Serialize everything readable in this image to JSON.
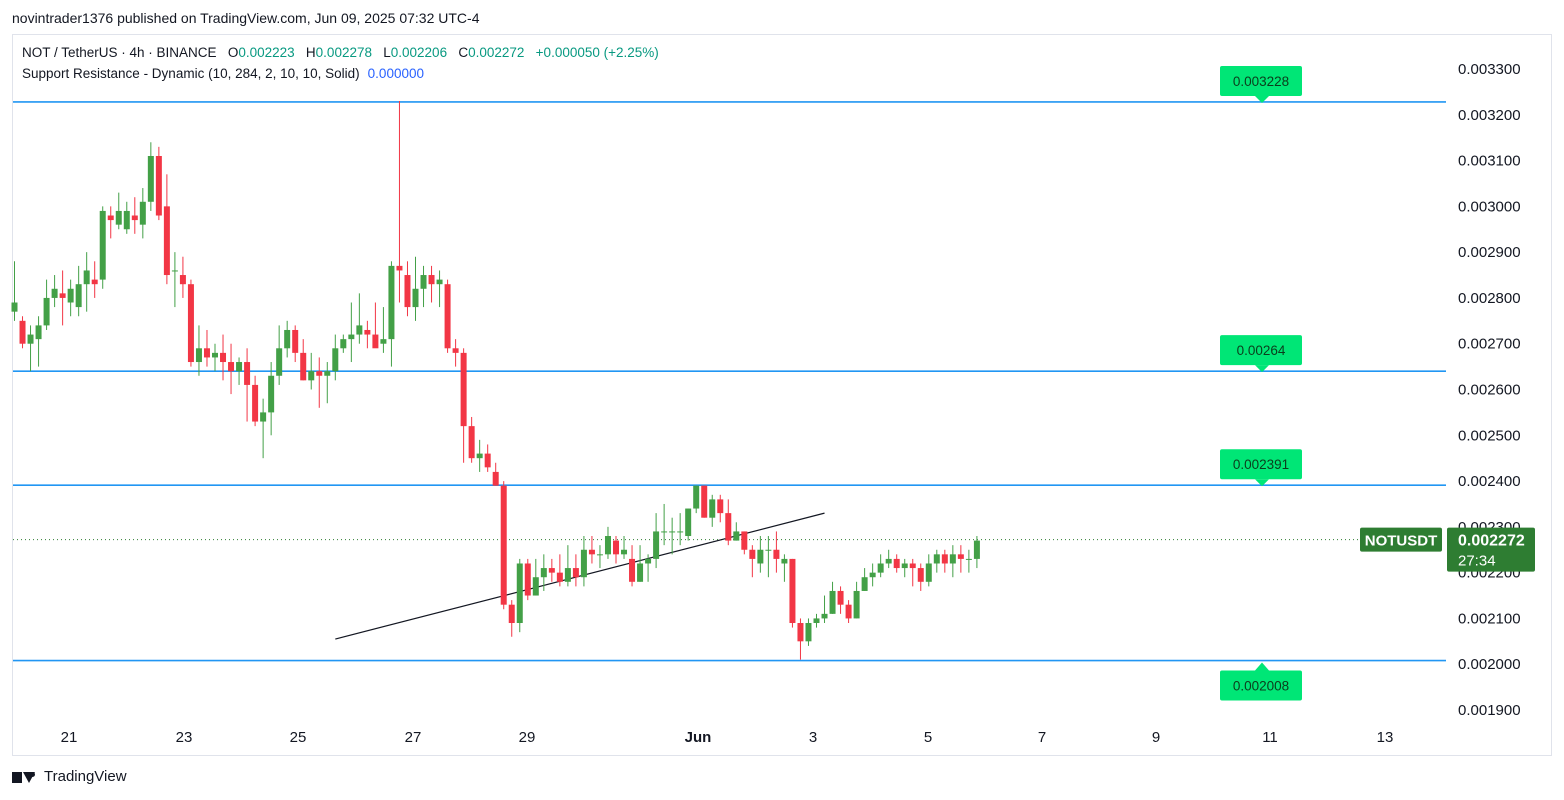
{
  "header": {
    "publisher_line": "novintrader1376 published on TradingView.com, Jun 09, 2025 07:32 UTC-4"
  },
  "legend": {
    "symbol_line": "NOT / TetherUS · 4h · BINANCE",
    "o_label": "O",
    "o_value": "0.002223",
    "h_label": "H",
    "h_value": "0.002278",
    "l_label": "L",
    "l_value": "0.002206",
    "c_label": "C",
    "c_value": "0.002272",
    "change": "+0.000050 (+2.25%)",
    "indicator": "Support Resistance - Dynamic (10, 284, 2, 10, 10, Solid)",
    "indicator_value": "0.000000"
  },
  "price_tag": {
    "symbol": "NOTUSDT",
    "price": "0.002272",
    "countdown": "27:34",
    "color": "#2e7d32"
  },
  "footer": {
    "brand": "TradingView"
  },
  "colors": {
    "up": "#43a047",
    "down": "#f23645",
    "level_line": "#2196f3",
    "level_label": "#00e676"
  },
  "chart_data": {
    "type": "candlestick",
    "interval": "4h",
    "ylim": [
      0.00185,
      0.00335
    ],
    "y_ticks": [
      "0.003300",
      "0.003200",
      "0.003100",
      "0.003000",
      "0.002900",
      "0.002800",
      "0.002700",
      "0.002600",
      "0.002500",
      "0.002400",
      "0.002300",
      "0.002200",
      "0.002100",
      "0.002000",
      "0.001900"
    ],
    "x_ticks": [
      "21",
      "23",
      "25",
      "27",
      "29",
      "Jun",
      "3",
      "5",
      "7",
      "9",
      "11",
      "13"
    ],
    "levels": [
      {
        "label": "0.003228",
        "value": 0.003228,
        "label_side": "above"
      },
      {
        "label": "0.00264",
        "value": 0.00264,
        "label_side": "above"
      },
      {
        "label": "0.002391",
        "value": 0.002391,
        "label_side": "above"
      },
      {
        "label": "0.002008",
        "value": 0.002008,
        "label_side": "below"
      }
    ],
    "last_price": 0.002272,
    "trendline": [
      {
        "bar": 40,
        "price": 0.002055
      },
      {
        "bar": 101,
        "price": 0.00233
      }
    ],
    "candles": [
      [
        0.00277,
        0.00279,
        0.00275,
        0.00288
      ],
      [
        0.00275,
        0.0027,
        0.00269,
        0.00276
      ],
      [
        0.0027,
        0.00272,
        0.00264,
        0.00274
      ],
      [
        0.00271,
        0.00274,
        0.00265,
        0.00276
      ],
      [
        0.00274,
        0.0028,
        0.00273,
        0.00284
      ],
      [
        0.0028,
        0.00282,
        0.00278,
        0.00285
      ],
      [
        0.00281,
        0.0028,
        0.00274,
        0.00286
      ],
      [
        0.00279,
        0.00282,
        0.00276,
        0.00284
      ],
      [
        0.00278,
        0.00283,
        0.00276,
        0.00287
      ],
      [
        0.00283,
        0.00286,
        0.00277,
        0.0029
      ],
      [
        0.00284,
        0.00283,
        0.0028,
        0.00288
      ],
      [
        0.00284,
        0.00299,
        0.00282,
        0.003
      ],
      [
        0.00298,
        0.00297,
        0.00293,
        0.003
      ],
      [
        0.00296,
        0.00299,
        0.00295,
        0.00303
      ],
      [
        0.00295,
        0.00299,
        0.00294,
        0.00301
      ],
      [
        0.00298,
        0.00297,
        0.00294,
        0.00302
      ],
      [
        0.00296,
        0.00301,
        0.00293,
        0.00304
      ],
      [
        0.00301,
        0.00311,
        0.00299,
        0.00314
      ],
      [
        0.00311,
        0.00298,
        0.00297,
        0.00313
      ],
      [
        0.003,
        0.00285,
        0.00283,
        0.00307
      ],
      [
        0.00286,
        0.00286,
        0.00278,
        0.0029
      ],
      [
        0.00285,
        0.00283,
        0.0028,
        0.00289
      ],
      [
        0.00283,
        0.00266,
        0.00265,
        0.00284
      ],
      [
        0.00266,
        0.00269,
        0.00263,
        0.00274
      ],
      [
        0.00269,
        0.00267,
        0.00265,
        0.00273
      ],
      [
        0.00267,
        0.00268,
        0.00264,
        0.0027
      ],
      [
        0.00268,
        0.00266,
        0.00262,
        0.00272
      ],
      [
        0.00266,
        0.00264,
        0.00259,
        0.0027
      ],
      [
        0.00264,
        0.00266,
        0.00261,
        0.00267
      ],
      [
        0.00266,
        0.00261,
        0.00253,
        0.00269
      ],
      [
        0.00261,
        0.00253,
        0.00252,
        0.00263
      ],
      [
        0.00253,
        0.00255,
        0.00245,
        0.00258
      ],
      [
        0.00255,
        0.00263,
        0.0025,
        0.00266
      ],
      [
        0.00263,
        0.00269,
        0.00261,
        0.00274
      ],
      [
        0.00269,
        0.00273,
        0.00267,
        0.00275
      ],
      [
        0.00273,
        0.00268,
        0.00266,
        0.00274
      ],
      [
        0.00268,
        0.00262,
        0.00262,
        0.00271
      ],
      [
        0.00262,
        0.00264,
        0.0026,
        0.00268
      ],
      [
        0.00264,
        0.00263,
        0.00256,
        0.00267
      ],
      [
        0.00263,
        0.00264,
        0.00257,
        0.00266
      ],
      [
        0.00264,
        0.00269,
        0.00262,
        0.00272
      ],
      [
        0.00269,
        0.00271,
        0.00268,
        0.00272
      ],
      [
        0.00271,
        0.00272,
        0.00266,
        0.00279
      ],
      [
        0.00272,
        0.00274,
        0.0027,
        0.00281
      ],
      [
        0.00273,
        0.00272,
        0.00269,
        0.00275
      ],
      [
        0.00272,
        0.00269,
        0.0027,
        0.00279
      ],
      [
        0.0027,
        0.00271,
        0.00268,
        0.00278
      ],
      [
        0.00271,
        0.00287,
        0.00265,
        0.00288
      ],
      [
        0.00287,
        0.00286,
        0.00279,
        0.00323
      ],
      [
        0.00285,
        0.00278,
        0.00276,
        0.00288
      ],
      [
        0.00278,
        0.00282,
        0.00275,
        0.00289
      ],
      [
        0.00282,
        0.00285,
        0.00278,
        0.00287
      ],
      [
        0.00285,
        0.00283,
        0.00279,
        0.00287
      ],
      [
        0.00283,
        0.00284,
        0.00278,
        0.00286
      ],
      [
        0.00283,
        0.00269,
        0.00268,
        0.00284
      ],
      [
        0.00269,
        0.00268,
        0.00265,
        0.00271
      ],
      [
        0.00268,
        0.00252,
        0.00244,
        0.00269
      ],
      [
        0.00252,
        0.00245,
        0.00244,
        0.00254
      ],
      [
        0.00245,
        0.00246,
        0.00242,
        0.00249
      ],
      [
        0.00246,
        0.00243,
        0.00242,
        0.00248
      ],
      [
        0.00242,
        0.00239,
        0.00239,
        0.00244
      ],
      [
        0.00239,
        0.00213,
        0.00212,
        0.0024
      ],
      [
        0.00213,
        0.00209,
        0.00206,
        0.00214
      ],
      [
        0.00209,
        0.00222,
        0.00207,
        0.00223
      ],
      [
        0.00222,
        0.00215,
        0.00214,
        0.00223
      ],
      [
        0.00215,
        0.00219,
        0.00215,
        0.00223
      ],
      [
        0.00219,
        0.00221,
        0.00216,
        0.00224
      ],
      [
        0.00221,
        0.0022,
        0.00218,
        0.00223
      ],
      [
        0.0022,
        0.00218,
        0.00217,
        0.00224
      ],
      [
        0.00218,
        0.00221,
        0.00217,
        0.00226
      ],
      [
        0.00221,
        0.00219,
        0.00217,
        0.00224
      ],
      [
        0.00219,
        0.00225,
        0.00217,
        0.00228
      ],
      [
        0.00225,
        0.00224,
        0.00222,
        0.00228
      ],
      [
        0.00224,
        0.00224,
        0.00221,
        0.00226
      ],
      [
        0.00224,
        0.00228,
        0.00223,
        0.0023
      ],
      [
        0.00227,
        0.00224,
        0.00222,
        0.00228
      ],
      [
        0.00224,
        0.00225,
        0.00223,
        0.00228
      ],
      [
        0.00223,
        0.00218,
        0.00217,
        0.00226
      ],
      [
        0.00218,
        0.00222,
        0.00218,
        0.00226
      ],
      [
        0.00222,
        0.00223,
        0.00218,
        0.00224
      ],
      [
        0.00223,
        0.00229,
        0.00221,
        0.00233
      ],
      [
        0.00229,
        0.00229,
        0.00226,
        0.00235
      ],
      [
        0.00229,
        0.00229,
        0.00224,
        0.00232
      ],
      [
        0.00229,
        0.00229,
        0.00226,
        0.00233
      ],
      [
        0.00228,
        0.00234,
        0.00227,
        0.00234
      ],
      [
        0.00234,
        0.00239,
        0.00233,
        0.00239
      ],
      [
        0.00239,
        0.00232,
        0.00232,
        0.00239
      ],
      [
        0.00232,
        0.00236,
        0.0023,
        0.00237
      ],
      [
        0.00236,
        0.00233,
        0.00231,
        0.00237
      ],
      [
        0.00233,
        0.00227,
        0.00226,
        0.00236
      ],
      [
        0.00227,
        0.00229,
        0.00227,
        0.00231
      ],
      [
        0.00229,
        0.00225,
        0.00224,
        0.00229
      ],
      [
        0.00225,
        0.00223,
        0.00219,
        0.00226
      ],
      [
        0.00222,
        0.00225,
        0.0022,
        0.00228
      ],
      [
        0.00225,
        0.00225,
        0.00219,
        0.00228
      ],
      [
        0.00225,
        0.00223,
        0.0022,
        0.00229
      ],
      [
        0.00222,
        0.00223,
        0.00218,
        0.00224
      ],
      [
        0.00223,
        0.00209,
        0.00208,
        0.00223
      ],
      [
        0.00209,
        0.00205,
        0.00201,
        0.0021
      ],
      [
        0.00205,
        0.00209,
        0.00204,
        0.0021
      ],
      [
        0.00209,
        0.0021,
        0.00208,
        0.00211
      ],
      [
        0.0021,
        0.00211,
        0.00209,
        0.00215
      ],
      [
        0.00211,
        0.00216,
        0.00211,
        0.00218
      ],
      [
        0.00216,
        0.00213,
        0.00211,
        0.00217
      ],
      [
        0.00213,
        0.0021,
        0.00209,
        0.00214
      ],
      [
        0.0021,
        0.00216,
        0.0021,
        0.00218
      ],
      [
        0.00216,
        0.00219,
        0.00216,
        0.00221
      ],
      [
        0.00219,
        0.0022,
        0.00217,
        0.00222
      ],
      [
        0.0022,
        0.00222,
        0.00219,
        0.00224
      ],
      [
        0.00222,
        0.00223,
        0.00221,
        0.00225
      ],
      [
        0.00223,
        0.00221,
        0.0022,
        0.00224
      ],
      [
        0.00221,
        0.00222,
        0.00219,
        0.00223
      ],
      [
        0.00222,
        0.00221,
        0.00217,
        0.00223
      ],
      [
        0.00221,
        0.00218,
        0.00216,
        0.00222
      ],
      [
        0.00218,
        0.00222,
        0.00217,
        0.00224
      ],
      [
        0.00222,
        0.00224,
        0.0022,
        0.00225
      ],
      [
        0.00224,
        0.00222,
        0.0022,
        0.00225
      ],
      [
        0.00222,
        0.00224,
        0.00219,
        0.00226
      ],
      [
        0.00224,
        0.00223,
        0.0022,
        0.00226
      ],
      [
        0.00223,
        0.00223,
        0.0022,
        0.00225
      ],
      [
        0.00223,
        0.00227,
        0.00221,
        0.00228
      ]
    ]
  }
}
